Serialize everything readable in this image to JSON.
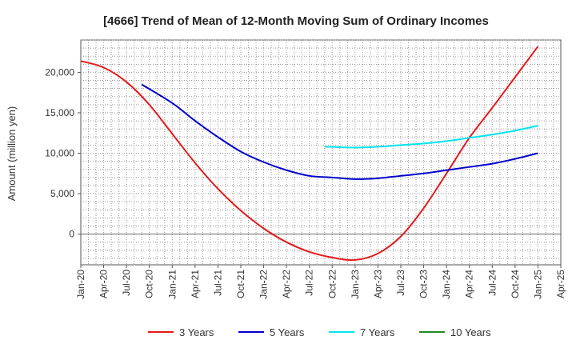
{
  "chart_data": {
    "type": "line",
    "title": "[4666]  Trend of Mean of 12-Month Moving Sum of Ordinary Incomes",
    "xlabel": "",
    "ylabel": "Amount (million yen)",
    "ylim": [
      -3800,
      24000
    ],
    "yticks": [
      0,
      5000,
      10000,
      15000,
      20000
    ],
    "ytick_labels": [
      "0",
      "5,000",
      "10,000",
      "15,000",
      "20,000"
    ],
    "x_start": "Jan-20",
    "x_end": "Apr-25",
    "x_total_months": 63,
    "categories": [
      "Jan-20",
      "Apr-20",
      "Jul-20",
      "Oct-20",
      "Jan-21",
      "Apr-21",
      "Jul-21",
      "Oct-21",
      "Jan-22",
      "Apr-22",
      "Jul-22",
      "Oct-22",
      "Jan-23",
      "Apr-23",
      "Jul-23",
      "Oct-23",
      "Jan-24",
      "Apr-24",
      "Jul-24",
      "Oct-24",
      "Jan-25",
      "Apr-25"
    ],
    "x_month_index": [
      0,
      3,
      6,
      9,
      12,
      15,
      18,
      21,
      24,
      27,
      30,
      33,
      36,
      39,
      42,
      45,
      48,
      51,
      54,
      57,
      60,
      63
    ],
    "series": [
      {
        "name": "3 Years",
        "color": "#e31a1c",
        "x": [
          0,
          3,
          6,
          9,
          12,
          15,
          18,
          21,
          24,
          27,
          30,
          33,
          36,
          39,
          42,
          45,
          48,
          51,
          54,
          57,
          60
        ],
        "values": [
          21400,
          20600,
          18800,
          16000,
          12400,
          8800,
          5600,
          2900,
          700,
          -1000,
          -2200,
          -2900,
          -3200,
          -2400,
          -300,
          3200,
          7500,
          11900,
          15600,
          19400,
          23200
        ]
      },
      {
        "name": "5 Years",
        "color": "#0000cc",
        "x": [
          8,
          12,
          15,
          18,
          21,
          24,
          27,
          30,
          33,
          36,
          39,
          42,
          45,
          48,
          51,
          54,
          57,
          60
        ],
        "values": [
          18500,
          16200,
          14000,
          12000,
          10200,
          8900,
          7900,
          7200,
          7000,
          6800,
          6900,
          7200,
          7500,
          7900,
          8300,
          8700,
          9300,
          10000
        ]
      },
      {
        "name": "7 Years",
        "color": "#00e5ee",
        "x": [
          32,
          36,
          39,
          42,
          45,
          48,
          51,
          54,
          57,
          60
        ],
        "values": [
          10800,
          10700,
          10800,
          11000,
          11200,
          11500,
          11900,
          12300,
          12800,
          13400
        ]
      },
      {
        "name": "10 Years",
        "color": "#228b22",
        "x": [],
        "values": []
      }
    ],
    "grid": true,
    "legend_position": "bottom"
  }
}
